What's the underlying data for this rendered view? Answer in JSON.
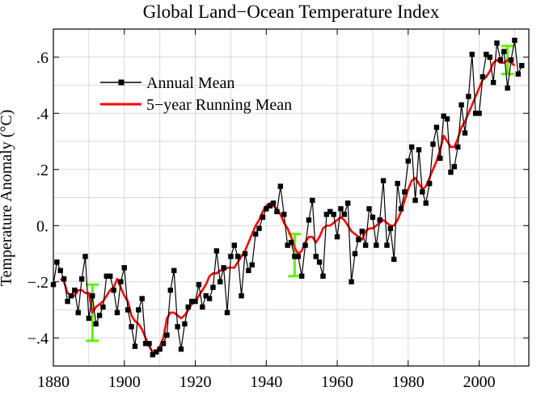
{
  "chart_data": {
    "type": "line",
    "title": "Global Land−Ocean Temperature Index",
    "xlabel": "",
    "ylabel": "Temperature Anomaly (°C)",
    "xlim": [
      1880,
      2014
    ],
    "ylim": [
      -0.5,
      0.7
    ],
    "x_ticks": [
      1880,
      1900,
      1920,
      1940,
      1960,
      1980,
      2000
    ],
    "x_tick_labels": [
      "1880",
      "1900",
      "1920",
      "1940",
      "1960",
      "1980",
      "2000"
    ],
    "y_ticks": [
      -0.4,
      -0.2,
      0.0,
      0.2,
      0.4,
      0.6
    ],
    "y_tick_labels": [
      "−.4",
      "−.2",
      "0.",
      ".2",
      ".4",
      ".6"
    ],
    "grid": true,
    "legend_position": "upper-left",
    "colors": {
      "annual": "#000000",
      "running": "#ff0000",
      "error_bars": "#66ee00"
    },
    "series": [
      {
        "name": "Annual Mean",
        "style": "line-with-square-markers",
        "x": [
          1880,
          1881,
          1882,
          1883,
          1884,
          1885,
          1886,
          1887,
          1888,
          1889,
          1890,
          1891,
          1892,
          1893,
          1894,
          1895,
          1896,
          1897,
          1898,
          1899,
          1900,
          1901,
          1902,
          1903,
          1904,
          1905,
          1906,
          1907,
          1908,
          1909,
          1910,
          1911,
          1912,
          1913,
          1914,
          1915,
          1916,
          1917,
          1918,
          1919,
          1920,
          1921,
          1922,
          1923,
          1924,
          1925,
          1926,
          1927,
          1928,
          1929,
          1930,
          1931,
          1932,
          1933,
          1934,
          1935,
          1936,
          1937,
          1938,
          1939,
          1940,
          1941,
          1942,
          1943,
          1944,
          1945,
          1946,
          1947,
          1948,
          1949,
          1950,
          1951,
          1952,
          1953,
          1954,
          1955,
          1956,
          1957,
          1958,
          1959,
          1960,
          1961,
          1962,
          1963,
          1964,
          1965,
          1966,
          1967,
          1968,
          1969,
          1970,
          1971,
          1972,
          1973,
          1974,
          1975,
          1976,
          1977,
          1978,
          1979,
          1980,
          1981,
          1982,
          1983,
          1984,
          1985,
          1986,
          1987,
          1988,
          1989,
          1990,
          1991,
          1992,
          1993,
          1994,
          1995,
          1996,
          1997,
          1998,
          1999,
          2000,
          2001,
          2002,
          2003,
          2004,
          2005,
          2006,
          2007,
          2008,
          2009,
          2010,
          2011,
          2012
        ],
        "values": [
          -0.21,
          -0.13,
          -0.16,
          -0.19,
          -0.27,
          -0.25,
          -0.23,
          -0.31,
          -0.19,
          -0.11,
          -0.33,
          -0.25,
          -0.35,
          -0.32,
          -0.29,
          -0.18,
          -0.18,
          -0.23,
          -0.31,
          -0.2,
          -0.15,
          -0.3,
          -0.36,
          -0.43,
          -0.3,
          -0.26,
          -0.42,
          -0.42,
          -0.46,
          -0.45,
          -0.44,
          -0.42,
          -0.39,
          -0.23,
          -0.16,
          -0.36,
          -0.44,
          -0.35,
          -0.29,
          -0.27,
          -0.27,
          -0.21,
          -0.29,
          -0.25,
          -0.26,
          -0.22,
          -0.09,
          -0.2,
          -0.15,
          -0.31,
          -0.11,
          -0.07,
          -0.11,
          -0.25,
          -0.1,
          -0.16,
          -0.14,
          -0.03,
          -0.01,
          0.03,
          0.06,
          0.07,
          0.08,
          0.05,
          0.14,
          0.04,
          -0.07,
          -0.06,
          -0.11,
          -0.11,
          -0.18,
          -0.07,
          0.02,
          0.09,
          -0.11,
          -0.13,
          -0.18,
          0.04,
          0.05,
          0.04,
          -0.04,
          0.06,
          0.04,
          0.08,
          -0.2,
          -0.1,
          -0.05,
          -0.02,
          -0.07,
          0.06,
          0.03,
          -0.07,
          0.02,
          0.16,
          -0.07,
          -0.01,
          -0.12,
          0.15,
          0.06,
          0.12,
          0.23,
          0.28,
          0.09,
          0.27,
          0.12,
          0.08,
          0.15,
          0.29,
          0.35,
          0.24,
          0.39,
          0.38,
          0.19,
          0.21,
          0.28,
          0.43,
          0.33,
          0.46,
          0.61,
          0.4,
          0.4,
          0.53,
          0.61,
          0.6,
          0.51,
          0.65,
          0.59,
          0.62,
          0.49,
          0.59,
          0.66,
          0.54,
          0.57
        ]
      },
      {
        "name": "5−year Running Mean",
        "style": "line",
        "x": [
          1882,
          1883,
          1884,
          1885,
          1886,
          1887,
          1888,
          1889,
          1890,
          1891,
          1892,
          1893,
          1894,
          1895,
          1896,
          1897,
          1898,
          1899,
          1900,
          1901,
          1902,
          1903,
          1904,
          1905,
          1906,
          1907,
          1908,
          1909,
          1910,
          1911,
          1912,
          1913,
          1914,
          1915,
          1916,
          1917,
          1918,
          1919,
          1920,
          1921,
          1922,
          1923,
          1924,
          1925,
          1926,
          1927,
          1928,
          1929,
          1930,
          1931,
          1932,
          1933,
          1934,
          1935,
          1936,
          1937,
          1938,
          1939,
          1940,
          1941,
          1942,
          1943,
          1944,
          1945,
          1946,
          1947,
          1948,
          1949,
          1950,
          1951,
          1952,
          1953,
          1954,
          1955,
          1956,
          1957,
          1958,
          1959,
          1960,
          1961,
          1962,
          1963,
          1964,
          1965,
          1966,
          1967,
          1968,
          1969,
          1970,
          1971,
          1972,
          1973,
          1974,
          1975,
          1976,
          1977,
          1978,
          1979,
          1980,
          1981,
          1982,
          1983,
          1984,
          1985,
          1986,
          1987,
          1988,
          1989,
          1990,
          1991,
          1992,
          1993,
          1994,
          1995,
          1996,
          1997,
          1998,
          1999,
          2000,
          2001,
          2002,
          2003,
          2004,
          2005,
          2006,
          2007,
          2008,
          2009,
          2010
        ],
        "values": [
          -0.19,
          -0.2,
          -0.24,
          -0.25,
          -0.25,
          -0.23,
          -0.23,
          -0.24,
          -0.24,
          -0.31,
          -0.29,
          -0.28,
          -0.27,
          -0.25,
          -0.23,
          -0.22,
          -0.19,
          -0.22,
          -0.25,
          -0.27,
          -0.32,
          -0.34,
          -0.35,
          -0.37,
          -0.4,
          -0.43,
          -0.45,
          -0.45,
          -0.43,
          -0.4,
          -0.33,
          -0.31,
          -0.31,
          -0.32,
          -0.33,
          -0.32,
          -0.3,
          -0.28,
          -0.27,
          -0.25,
          -0.23,
          -0.21,
          -0.18,
          -0.17,
          -0.17,
          -0.16,
          -0.16,
          -0.15,
          -0.15,
          -0.15,
          -0.13,
          -0.11,
          -0.09,
          -0.06,
          -0.03,
          0.0,
          0.02,
          0.05,
          0.07,
          0.08,
          0.07,
          0.06,
          0.04,
          0.01,
          -0.01,
          -0.04,
          -0.08,
          -0.1,
          -0.09,
          -0.06,
          -0.04,
          -0.04,
          -0.06,
          -0.04,
          -0.01,
          0.0,
          0.0,
          0.01,
          0.02,
          0.03,
          0.02,
          0.0,
          -0.02,
          -0.03,
          -0.04,
          -0.05,
          -0.02,
          -0.01,
          -0.01,
          0.0,
          0.01,
          0.02,
          0.01,
          0.0,
          0.0,
          0.02,
          0.05,
          0.09,
          0.13,
          0.16,
          0.17,
          0.15,
          0.13,
          0.14,
          0.17,
          0.2,
          0.23,
          0.27,
          0.32,
          0.3,
          0.28,
          0.28,
          0.31,
          0.35,
          0.37,
          0.4,
          0.43,
          0.46,
          0.49,
          0.52,
          0.53,
          0.55,
          0.58,
          0.59,
          0.58,
          0.58,
          0.59,
          0.58,
          0.57
        ]
      }
    ],
    "uncertainty_bars": [
      {
        "x": 1891,
        "low": -0.41,
        "high": -0.21
      },
      {
        "x": 1948,
        "low": -0.18,
        "high": -0.03
      },
      {
        "x": 2008,
        "low": 0.54,
        "high": 0.64
      }
    ],
    "legend": [
      {
        "label": "Annual Mean",
        "key": "annual"
      },
      {
        "label": "5−year Running Mean",
        "key": "running"
      }
    ]
  }
}
